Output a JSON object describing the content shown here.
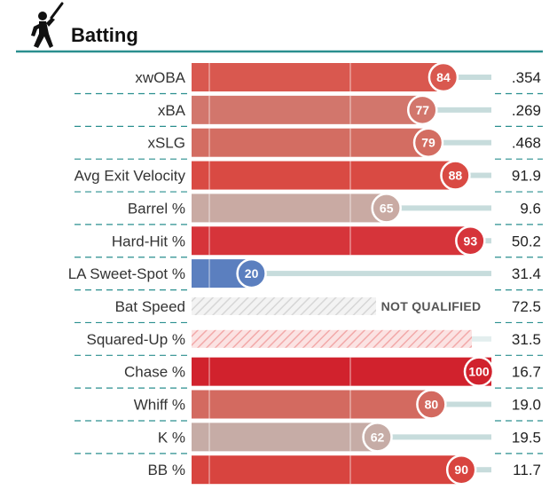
{
  "header": {
    "title": "Batting",
    "icon": "batter-silhouette-icon"
  },
  "colors": {
    "teal_line": "#2a8f8f",
    "track": "#c7dcdc",
    "track_faint": "#e3eeee",
    "hatch": "#dddddd",
    "hatch_red": "#f4b1b1"
  },
  "chart_data": {
    "type": "bar",
    "title": "Batting",
    "value_range": [
      0,
      100
    ],
    "grid": "vertical reference lines at 50",
    "rows": [
      {
        "label": "xwOBA",
        "percentile": 84,
        "value": ".354",
        "color": "#d9584f",
        "status": ""
      },
      {
        "label": "xBA",
        "percentile": 77,
        "value": ".269",
        "color": "#d2766c",
        "status": ""
      },
      {
        "label": "xSLG",
        "percentile": 79,
        "value": ".468",
        "color": "#d36d62",
        "status": ""
      },
      {
        "label": "Avg Exit Velocity",
        "percentile": 88,
        "value": "91.9",
        "color": "#d94a43",
        "status": ""
      },
      {
        "label": "Barrel %",
        "percentile": 65,
        "value": "9.6",
        "color": "#c9aaa3",
        "status": ""
      },
      {
        "label": "Hard-Hit %",
        "percentile": 93,
        "value": "50.2",
        "color": "#d6343a",
        "status": ""
      },
      {
        "label": "LA Sweet-Spot %",
        "percentile": 20,
        "value": "31.4",
        "color": "#5b7fbf",
        "status": ""
      },
      {
        "label": "Bat Speed",
        "percentile": null,
        "value": "72.5",
        "color": "#dddddd",
        "status": "NOT QUALIFIED"
      },
      {
        "label": "Squared-Up %",
        "percentile": null,
        "value": "31.5",
        "color": "#f4b1b1",
        "status": ""
      },
      {
        "label": "Chase %",
        "percentile": 100,
        "value": "16.7",
        "color": "#d1222d",
        "status": ""
      },
      {
        "label": "Whiff %",
        "percentile": 80,
        "value": "19.0",
        "color": "#d36a60",
        "status": ""
      },
      {
        "label": "K %",
        "percentile": 62,
        "value": "19.5",
        "color": "#c6aca6",
        "status": ""
      },
      {
        "label": "BB %",
        "percentile": 90,
        "value": "11.7",
        "color": "#d8443f",
        "status": ""
      }
    ]
  }
}
